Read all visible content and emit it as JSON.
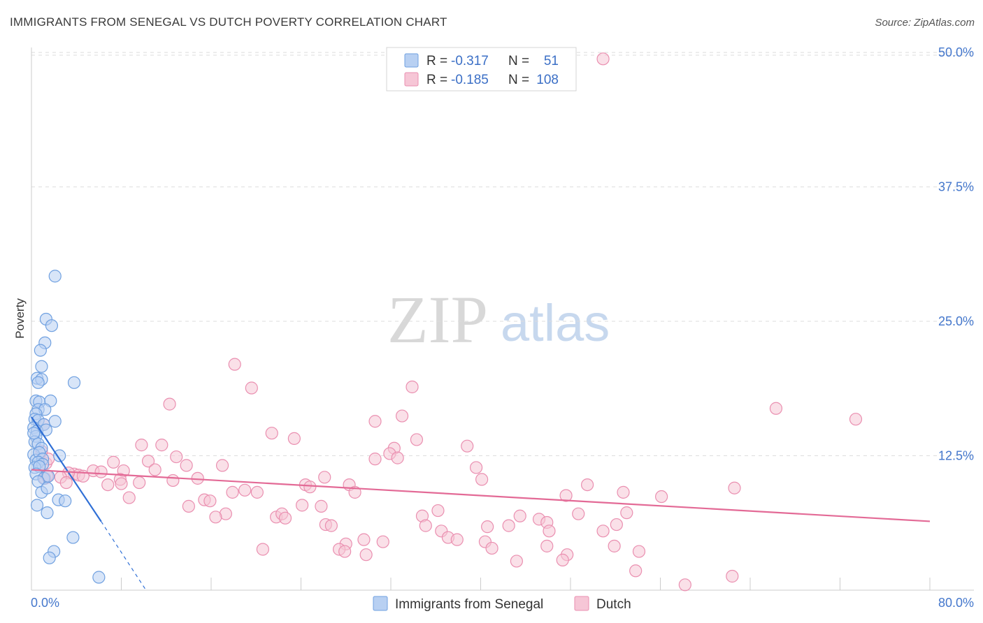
{
  "title": "IMMIGRANTS FROM SENEGAL VS DUTCH POVERTY CORRELATION CHART",
  "source": "Source: ZipAtlas.com",
  "watermark": {
    "zip": "ZIP",
    "atlas": "atlas"
  },
  "colors": {
    "blue_fill": "#b8d0f2",
    "blue_stroke": "#6fa0e0",
    "blue_line": "#2f6fd6",
    "pink_fill": "#f6c6d6",
    "pink_stroke": "#ea8fb0",
    "pink_line": "#e36a96",
    "grid": "#dddddd",
    "accent_text": "#4477cc"
  },
  "stats": {
    "blue": {
      "r_label": "R =",
      "r_value": "-0.317",
      "n_label": "N =",
      "n_value": "51"
    },
    "pink": {
      "r_label": "R =",
      "r_value": "-0.185",
      "n_label": "N =",
      "n_value": "108"
    }
  },
  "chart_data": {
    "type": "scatter",
    "title": "IMMIGRANTS FROM SENEGAL VS DUTCH POVERTY CORRELATION CHART",
    "xlabel": "",
    "ylabel": "Poverty",
    "xlim": [
      0,
      80
    ],
    "ylim": [
      0,
      51.5
    ],
    "x_tick_labels": {
      "min": "0.0%",
      "max": "80.0%"
    },
    "x_minor_ticks": [
      8,
      16,
      24,
      32,
      40,
      48,
      56,
      64,
      72,
      80
    ],
    "y_ticks": [
      {
        "value": 12.5,
        "label": "12.5%"
      },
      {
        "value": 25.0,
        "label": "25.0%"
      },
      {
        "value": 37.5,
        "label": "37.5%"
      },
      {
        "value": 50.0,
        "label": "50.0%"
      }
    ],
    "legend": [
      {
        "name": "Immigrants from Senegal",
        "color": "blue"
      },
      {
        "name": "Dutch",
        "color": "pink"
      }
    ],
    "series": [
      {
        "name": "Immigrants from Senegal",
        "color": "blue",
        "trend": {
          "x0": 0,
          "y0": 16.1,
          "x1": 6.2,
          "y1": 6.4,
          "dash_to_x": 10.2,
          "dash_to_y": 0.0
        },
        "points": [
          [
            2.1,
            29.2
          ],
          [
            1.3,
            25.2
          ],
          [
            1.8,
            24.6
          ],
          [
            1.2,
            23.0
          ],
          [
            0.8,
            22.3
          ],
          [
            0.9,
            20.8
          ],
          [
            0.5,
            19.7
          ],
          [
            0.9,
            19.6
          ],
          [
            0.6,
            19.3
          ],
          [
            3.8,
            19.3
          ],
          [
            0.4,
            17.6
          ],
          [
            0.7,
            17.5
          ],
          [
            1.7,
            17.6
          ],
          [
            0.6,
            16.8
          ],
          [
            1.2,
            16.8
          ],
          [
            0.4,
            16.4
          ],
          [
            0.3,
            15.9
          ],
          [
            0.6,
            15.8
          ],
          [
            1.1,
            15.4
          ],
          [
            2.1,
            15.7
          ],
          [
            0.2,
            15.1
          ],
          [
            0.5,
            14.8
          ],
          [
            0.4,
            14.3
          ],
          [
            0.3,
            13.8
          ],
          [
            0.6,
            13.6
          ],
          [
            0.9,
            13.2
          ],
          [
            0.2,
            12.6
          ],
          [
            0.4,
            12.1
          ],
          [
            0.7,
            12.8
          ],
          [
            2.5,
            12.5
          ],
          [
            1.0,
            12.2
          ],
          [
            0.6,
            11.9
          ],
          [
            1.0,
            11.7
          ],
          [
            0.3,
            11.4
          ],
          [
            0.7,
            11.5
          ],
          [
            0.4,
            10.8
          ],
          [
            1.1,
            10.4
          ],
          [
            1.5,
            10.6
          ],
          [
            0.6,
            10.1
          ],
          [
            0.9,
            9.1
          ],
          [
            1.4,
            9.5
          ],
          [
            2.4,
            8.4
          ],
          [
            3.0,
            8.3
          ],
          [
            0.5,
            7.9
          ],
          [
            1.4,
            7.2
          ],
          [
            3.7,
            4.9
          ],
          [
            2.0,
            3.6
          ],
          [
            1.6,
            3.0
          ],
          [
            6.0,
            1.2
          ],
          [
            0.2,
            14.6
          ],
          [
            1.3,
            14.9
          ]
        ]
      },
      {
        "name": "Dutch",
        "color": "pink",
        "trend": {
          "x0": 0,
          "y0": 11.2,
          "x1": 80,
          "y1": 6.4
        },
        "points": [
          [
            50.9,
            49.4
          ],
          [
            18.1,
            21.0
          ],
          [
            19.6,
            18.8
          ],
          [
            33.9,
            18.9
          ],
          [
            12.3,
            17.3
          ],
          [
            66.3,
            16.9
          ],
          [
            73.4,
            15.9
          ],
          [
            33.0,
            16.2
          ],
          [
            30.6,
            15.7
          ],
          [
            21.4,
            14.6
          ],
          [
            23.4,
            14.1
          ],
          [
            34.3,
            14.0
          ],
          [
            9.8,
            13.5
          ],
          [
            11.6,
            13.5
          ],
          [
            32.3,
            13.2
          ],
          [
            38.8,
            13.4
          ],
          [
            31.9,
            12.7
          ],
          [
            30.6,
            12.2
          ],
          [
            32.6,
            12.3
          ],
          [
            12.9,
            12.4
          ],
          [
            13.8,
            11.6
          ],
          [
            17.0,
            11.6
          ],
          [
            10.4,
            12.0
          ],
          [
            7.3,
            11.9
          ],
          [
            8.2,
            11.1
          ],
          [
            11.0,
            11.2
          ],
          [
            5.5,
            11.1
          ],
          [
            3.8,
            10.8
          ],
          [
            4.2,
            10.7
          ],
          [
            6.2,
            11.0
          ],
          [
            3.3,
            10.9
          ],
          [
            1.2,
            10.4
          ],
          [
            1.4,
            10.6
          ],
          [
            2.6,
            10.5
          ],
          [
            7.9,
            10.3
          ],
          [
            12.6,
            10.2
          ],
          [
            14.8,
            10.4
          ],
          [
            9.6,
            10.0
          ],
          [
            6.8,
            9.8
          ],
          [
            8.0,
            9.9
          ],
          [
            24.4,
            9.8
          ],
          [
            24.8,
            9.6
          ],
          [
            26.1,
            10.5
          ],
          [
            28.3,
            9.8
          ],
          [
            28.8,
            9.1
          ],
          [
            39.6,
            11.4
          ],
          [
            40.1,
            10.3
          ],
          [
            49.5,
            9.8
          ],
          [
            52.7,
            9.1
          ],
          [
            62.6,
            9.5
          ],
          [
            47.6,
            8.8
          ],
          [
            56.1,
            8.7
          ],
          [
            19.0,
            9.3
          ],
          [
            17.9,
            9.1
          ],
          [
            20.1,
            9.1
          ],
          [
            15.4,
            8.4
          ],
          [
            15.9,
            8.3
          ],
          [
            8.7,
            8.6
          ],
          [
            14.0,
            7.8
          ],
          [
            24.1,
            7.9
          ],
          [
            25.8,
            7.8
          ],
          [
            36.2,
            7.4
          ],
          [
            17.3,
            7.1
          ],
          [
            16.4,
            6.8
          ],
          [
            21.8,
            6.8
          ],
          [
            22.3,
            7.1
          ],
          [
            22.6,
            6.7
          ],
          [
            34.8,
            6.9
          ],
          [
            43.5,
            6.9
          ],
          [
            45.2,
            6.6
          ],
          [
            48.7,
            7.1
          ],
          [
            53.0,
            7.2
          ],
          [
            45.9,
            6.3
          ],
          [
            42.5,
            6.0
          ],
          [
            50.9,
            5.5
          ],
          [
            52.1,
            6.1
          ],
          [
            26.2,
            6.1
          ],
          [
            26.7,
            6.0
          ],
          [
            35.1,
            6.0
          ],
          [
            36.5,
            5.5
          ],
          [
            37.1,
            4.9
          ],
          [
            37.9,
            4.7
          ],
          [
            40.6,
            5.9
          ],
          [
            46.1,
            5.5
          ],
          [
            29.6,
            4.7
          ],
          [
            31.3,
            4.5
          ],
          [
            40.4,
            4.5
          ],
          [
            41.0,
            3.9
          ],
          [
            28.0,
            4.3
          ],
          [
            27.4,
            3.8
          ],
          [
            27.9,
            3.6
          ],
          [
            20.6,
            3.8
          ],
          [
            29.8,
            3.3
          ],
          [
            45.9,
            4.1
          ],
          [
            47.7,
            3.3
          ],
          [
            51.9,
            4.1
          ],
          [
            54.1,
            3.6
          ],
          [
            43.2,
            2.7
          ],
          [
            47.3,
            2.8
          ],
          [
            53.8,
            1.8
          ],
          [
            58.2,
            0.5
          ],
          [
            62.4,
            1.3
          ],
          [
            3.1,
            10.0
          ],
          [
            4.6,
            10.6
          ],
          [
            1.3,
            11.8
          ],
          [
            1.5,
            12.2
          ],
          [
            0.9,
            12.9
          ],
          [
            1.1,
            15.4
          ]
        ]
      }
    ]
  }
}
